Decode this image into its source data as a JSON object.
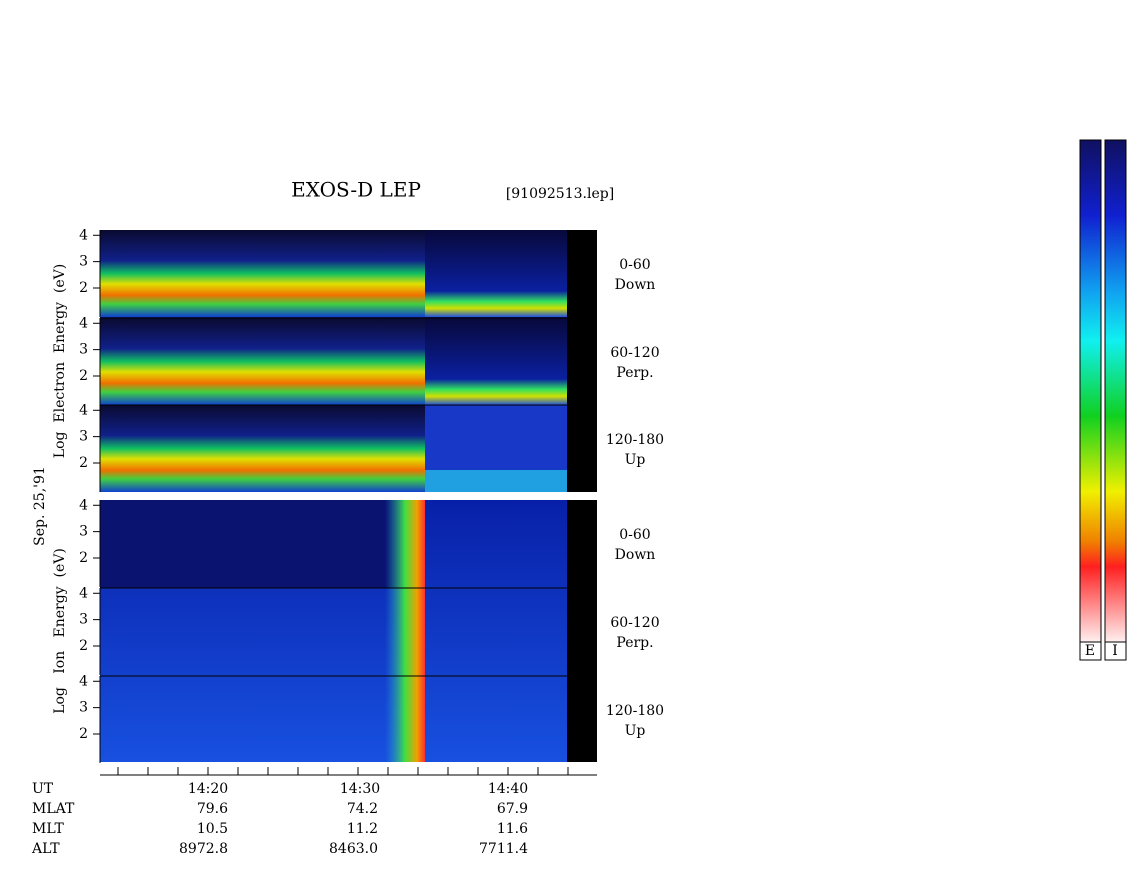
{
  "title": "EXOS-D LEP",
  "file": "[91092513.lep]",
  "date_label": "Sep. 25,'91",
  "yaxis": {
    "ylim": [
      0.9,
      4.2
    ],
    "yticks": [
      2,
      3,
      4
    ]
  },
  "electron": {
    "ylabel": "Log  Electron  Energy  (eV)",
    "panels": [
      {
        "angle": "0-60",
        "direction": "Down"
      },
      {
        "angle": "60-120",
        "direction": "Perp."
      },
      {
        "angle": "120-180",
        "direction": "Up"
      }
    ]
  },
  "ion": {
    "ylabel": "Log   Ion   Energy  (eV)",
    "panels": [
      {
        "angle": "0-60",
        "direction": "Down"
      },
      {
        "angle": "60-120",
        "direction": "Perp."
      },
      {
        "angle": "120-180",
        "direction": "Up"
      }
    ]
  },
  "ut_label": "UT",
  "time_ticks": [
    "14:20",
    "14:30",
    "14:40"
  ],
  "orbit": {
    "rows": [
      {
        "name": "MLAT",
        "values": [
          "79.6",
          "74.2",
          "67.9"
        ]
      },
      {
        "name": "MLT",
        "values": [
          "10.5",
          "11.2",
          "11.6"
        ]
      },
      {
        "name": "ALT",
        "values": [
          "8972.8",
          "8463.0",
          "7711.4"
        ]
      }
    ]
  },
  "colorbar_labels": [
    "E",
    "I"
  ]
}
